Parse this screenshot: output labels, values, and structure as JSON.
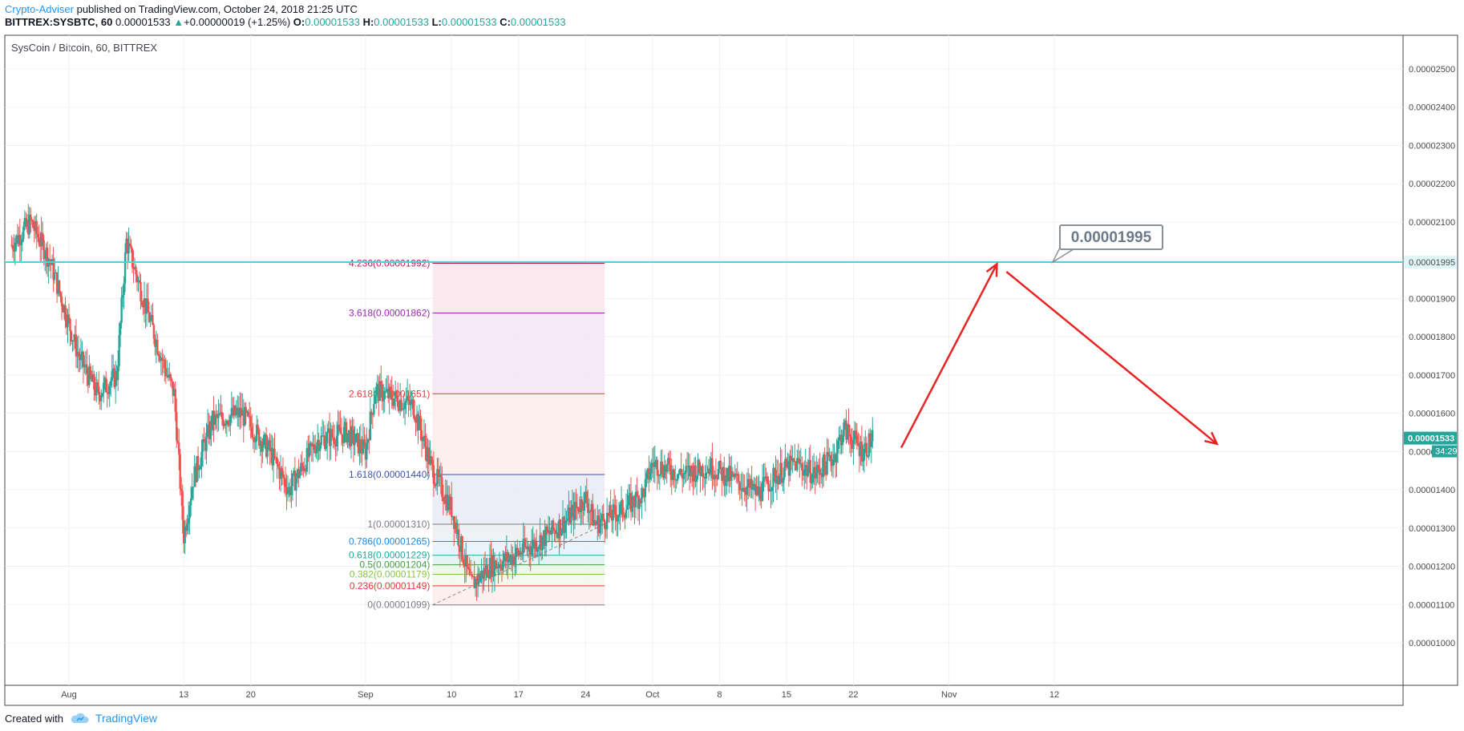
{
  "header": {
    "author": "Crypto-Adviser",
    "published_text": "published on TradingView.com, October 24, 2018 21:25 UTC",
    "symbol": "BITTREX:SYSBTC, 60",
    "last": "0.00001533",
    "change_arrow": "▲",
    "change": "+0.00000019 (+1.25%)",
    "o_label": "O:",
    "o_value": "0.00001533",
    "h_label": "H:",
    "h_value": "0.00001533",
    "l_label": "L:",
    "l_value": "0.00001533",
    "c_label": "C:",
    "c_value": "0.00001533"
  },
  "footer": {
    "created_with": "Created with",
    "brand": "TradingView",
    "brand_icon": "tradingview-cloud-icon"
  },
  "colors": {
    "up": "#26a69a",
    "down": "#ef5350",
    "line": "#4dd0e1",
    "arrow": "#e82424",
    "badge": "#26a69a"
  },
  "chart_data": {
    "type": "candlestick",
    "title": "SysCoin / Bitcoin, 60, BITTREX",
    "ylim": [
      9e-06,
      2.6e-05
    ],
    "y_ticks": [
      "0.00001000",
      "0.00001100",
      "0.00001200",
      "0.00001300",
      "0.00001400",
      "0.00001500",
      "0.00001600",
      "0.00001700",
      "0.00001800",
      "0.00001900",
      "0.00002000",
      "0.00002100",
      "0.00002200",
      "0.00002300",
      "0.00002400",
      "0.00002500"
    ],
    "x_ticks": [
      "Aug",
      "13",
      "20",
      "Sep",
      "10",
      "17",
      "24",
      "Oct",
      "8",
      "15",
      "22",
      "Nov",
      "12"
    ],
    "x_ticks_date": [
      "2018-08-01",
      "2018-08-13",
      "2018-08-20",
      "2018-09-01",
      "2018-09-10",
      "2018-09-17",
      "2018-09-24",
      "2018-10-01",
      "2018-10-08",
      "2018-10-15",
      "2018-10-22",
      "2018-11-01",
      "2018-11-12"
    ],
    "price_path": [
      [
        "2018-07-26",
        2.04e-05
      ],
      [
        "2018-07-28",
        2.1e-05
      ],
      [
        "2018-07-30",
        2e-05
      ],
      [
        "2018-08-02",
        1.75e-05
      ],
      [
        "2018-08-04",
        1.65e-05
      ],
      [
        "2018-08-06",
        1.7e-05
      ],
      [
        "2018-08-07",
        2.05e-05
      ],
      [
        "2018-08-09",
        1.88e-05
      ],
      [
        "2018-08-11",
        1.72e-05
      ],
      [
        "2018-08-12",
        1.65e-05
      ],
      [
        "2018-08-13",
        1.28e-05
      ],
      [
        "2018-08-14",
        1.43e-05
      ],
      [
        "2018-08-16",
        1.58e-05
      ],
      [
        "2018-08-19",
        1.6e-05
      ],
      [
        "2018-08-22",
        1.5e-05
      ],
      [
        "2018-08-24",
        1.4e-05
      ],
      [
        "2018-08-27",
        1.53e-05
      ],
      [
        "2018-08-30",
        1.55e-05
      ],
      [
        "2018-09-01",
        1.5e-05
      ],
      [
        "2018-09-02",
        1.66e-05
      ],
      [
        "2018-09-04",
        1.64e-05
      ],
      [
        "2018-09-06",
        1.62e-05
      ],
      [
        "2018-09-08",
        1.45e-05
      ],
      [
        "2018-09-10",
        1.35e-05
      ],
      [
        "2018-09-12",
        1.15e-05
      ],
      [
        "2018-09-14",
        1.2e-05
      ],
      [
        "2018-09-16",
        1.22e-05
      ],
      [
        "2018-09-18",
        1.25e-05
      ],
      [
        "2018-09-20",
        1.28e-05
      ],
      [
        "2018-09-22",
        1.32e-05
      ],
      [
        "2018-09-24",
        1.38e-05
      ],
      [
        "2018-09-25",
        1.31e-05
      ],
      [
        "2018-09-28",
        1.35e-05
      ],
      [
        "2018-09-30",
        1.39e-05
      ],
      [
        "2018-10-01",
        1.47e-05
      ],
      [
        "2018-10-04",
        1.44e-05
      ],
      [
        "2018-10-07",
        1.46e-05
      ],
      [
        "2018-10-10",
        1.42e-05
      ],
      [
        "2018-10-12",
        1.39e-05
      ],
      [
        "2018-10-14",
        1.44e-05
      ],
      [
        "2018-10-16",
        1.47e-05
      ],
      [
        "2018-10-18",
        1.44e-05
      ],
      [
        "2018-10-20",
        1.49e-05
      ],
      [
        "2018-10-21",
        1.56e-05
      ],
      [
        "2018-10-23",
        1.5e-05
      ],
      [
        "2018-10-24",
        1.533e-05
      ]
    ],
    "last_price": "0.00001533",
    "countdown": "34:29",
    "horizontal_line": {
      "price": 1.995e-05,
      "label": "0.00001995"
    },
    "callout": {
      "text": "0.00001995"
    },
    "fib": {
      "x_start": "2018-09-08",
      "x_end": "2018-09-26",
      "levels": [
        {
          "label": "4.236(0.00001992)",
          "price": 1.992e-05,
          "color": "#c2185b"
        },
        {
          "label": "3.618(0.00001862)",
          "price": 1.862e-05,
          "color": "#9c27b0"
        },
        {
          "label": "2.618(0.00001651)",
          "price": 1.651e-05,
          "color": "#e53935"
        },
        {
          "label": "1.618(0.00001440)",
          "price": 1.44e-05,
          "color": "#3f51b5"
        },
        {
          "label": "1(0.00001310)",
          "price": 1.31e-05,
          "color": "#787b86"
        },
        {
          "label": "0.786(0.00001265)",
          "price": 1.265e-05,
          "color": "#1e88e5"
        },
        {
          "label": "0.618(0.00001229)",
          "price": 1.229e-05,
          "color": "#26a69a"
        },
        {
          "label": "0.5(0.00001204)",
          "price": 1.204e-05,
          "color": "#43a047"
        },
        {
          "label": "0.382(0.00001179)",
          "price": 1.179e-05,
          "color": "#8bc34a"
        },
        {
          "label": "0.236(0.00001149)",
          "price": 1.149e-05,
          "color": "#e53935"
        },
        {
          "label": "0(0.00001099)",
          "price": 1.099e-05,
          "color": "#787b86"
        }
      ],
      "trend_line": [
        [
          "2018-09-08",
          1.099e-05
        ],
        [
          "2018-09-26",
          1.31e-05
        ]
      ]
    },
    "arrows": [
      {
        "from": [
          "2018-10-27",
          1.51e-05
        ],
        "to": [
          "2018-11-06",
          1.99e-05
        ]
      },
      {
        "from": [
          "2018-11-07",
          1.97e-05
        ],
        "to": [
          "2018-11-29",
          1.52e-05
        ]
      }
    ]
  }
}
